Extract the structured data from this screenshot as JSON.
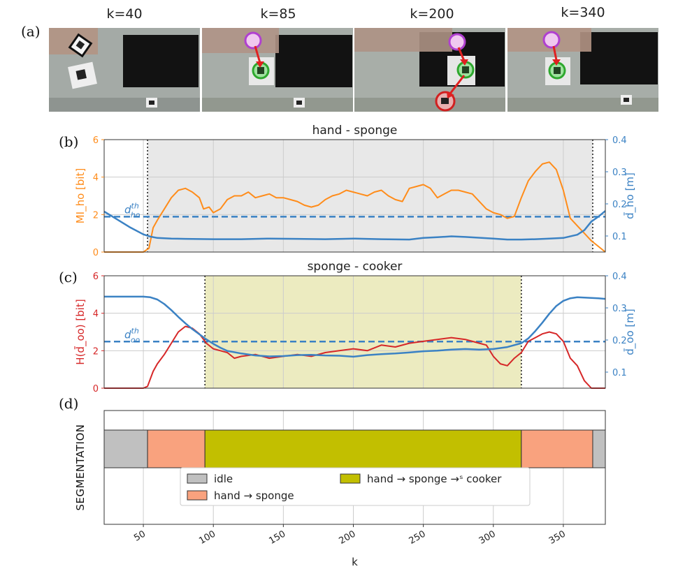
{
  "panel_letters": [
    "(a)",
    "(b)",
    "(c)",
    "(d)"
  ],
  "frames": [
    {
      "label": "k=40"
    },
    {
      "label": "k=85"
    },
    {
      "label": "k=200"
    },
    {
      "label": "k=340"
    }
  ],
  "colors": {
    "orange": "#ff8c1a",
    "blue": "#3b82c4",
    "red": "#d62728",
    "shade_b": "#e8e8e8",
    "shade_c": "#ecebc0",
    "idle": "#c0c0c0",
    "hand_sponge": "#f9a27e",
    "hand_sponge_cooker": "#c2bf00",
    "grid": "#cccccc"
  },
  "x_axis": {
    "label": "k",
    "ticks": [
      "50",
      "100",
      "150",
      "200",
      "250",
      "300",
      "350"
    ]
  },
  "chart_data": [
    {
      "type": "line",
      "panel": "(b)",
      "title": "hand - sponge",
      "ylabel": "MI_ho [bit]",
      "ylabel_right": "d̄_ho [m]",
      "xlim": [
        22,
        380
      ],
      "ylim": [
        0,
        6
      ],
      "ylim_right": [
        0.05,
        0.4
      ],
      "yticks": [
        "0",
        "2",
        "4",
        "6"
      ],
      "yticks_right": [
        "0.1",
        "0.2",
        "0.3",
        "0.4"
      ],
      "threshold_label": "d_ho^th",
      "threshold_right": 0.16,
      "shaded_region": [
        53,
        371
      ],
      "vlines": [
        53,
        371
      ],
      "series": [
        {
          "axis": "left",
          "color": "orange",
          "x": [
            22,
            50,
            54,
            57,
            60,
            65,
            70,
            75,
            80,
            85,
            90,
            93,
            97,
            100,
            105,
            110,
            115,
            120,
            125,
            130,
            135,
            140,
            145,
            150,
            155,
            160,
            165,
            170,
            175,
            180,
            185,
            190,
            195,
            200,
            205,
            210,
            215,
            220,
            225,
            230,
            235,
            240,
            245,
            250,
            255,
            260,
            265,
            270,
            275,
            280,
            285,
            290,
            295,
            300,
            305,
            310,
            315,
            320,
            325,
            330,
            335,
            340,
            345,
            350,
            355,
            360,
            365,
            370,
            375,
            380
          ],
          "y": [
            0,
            0,
            0.2,
            1.3,
            1.7,
            2.3,
            2.9,
            3.3,
            3.4,
            3.2,
            2.9,
            2.3,
            2.4,
            2.1,
            2.3,
            2.8,
            3.0,
            3.0,
            3.2,
            2.9,
            3.0,
            3.1,
            2.9,
            2.9,
            2.8,
            2.7,
            2.5,
            2.4,
            2.5,
            2.8,
            3.0,
            3.1,
            3.3,
            3.2,
            3.1,
            3.0,
            3.2,
            3.3,
            3.0,
            2.8,
            2.7,
            3.4,
            3.5,
            3.6,
            3.4,
            2.9,
            3.1,
            3.3,
            3.3,
            3.2,
            3.1,
            2.7,
            2.3,
            2.1,
            2.0,
            1.8,
            1.9,
            2.9,
            3.8,
            4.3,
            4.7,
            4.8,
            4.4,
            3.3,
            1.8,
            1.4,
            1.0,
            0.6,
            0.3,
            0
          ]
        },
        {
          "axis": "right",
          "color": "blue",
          "x": [
            22,
            30,
            40,
            50,
            55,
            60,
            70,
            80,
            100,
            120,
            140,
            160,
            180,
            200,
            220,
            240,
            250,
            260,
            270,
            280,
            300,
            310,
            320,
            330,
            340,
            350,
            360,
            365,
            370,
            375,
            380
          ],
          "y": [
            0.176,
            0.155,
            0.128,
            0.105,
            0.098,
            0.094,
            0.092,
            0.091,
            0.09,
            0.09,
            0.092,
            0.091,
            0.09,
            0.092,
            0.09,
            0.089,
            0.094,
            0.096,
            0.099,
            0.097,
            0.092,
            0.089,
            0.089,
            0.09,
            0.092,
            0.094,
            0.104,
            0.118,
            0.145,
            0.16,
            0.178
          ]
        }
      ]
    },
    {
      "type": "line",
      "panel": "(c)",
      "title": "sponge - cooker",
      "ylabel": "H(d̄_oo) [bit]",
      "ylabel_right": "d̄_oo [m]",
      "xlim": [
        22,
        380
      ],
      "ylim": [
        0,
        6
      ],
      "ylim_right": [
        0.05,
        0.4
      ],
      "yticks": [
        "0",
        "2",
        "4",
        "6"
      ],
      "yticks_right": [
        "0.1",
        "0.2",
        "0.3",
        "0.4"
      ],
      "threshold_label": "d_oo^th",
      "threshold_right": 0.195,
      "shaded_region": [
        94,
        320
      ],
      "vlines": [
        94,
        320
      ],
      "series": [
        {
          "axis": "left",
          "color": "red",
          "x": [
            22,
            50,
            53,
            57,
            60,
            65,
            70,
            75,
            80,
            85,
            90,
            95,
            100,
            105,
            110,
            115,
            120,
            130,
            140,
            150,
            160,
            170,
            180,
            190,
            200,
            210,
            220,
            230,
            240,
            250,
            260,
            270,
            280,
            285,
            290,
            295,
            300,
            305,
            310,
            315,
            320,
            325,
            330,
            335,
            340,
            345,
            350,
            355,
            360,
            365,
            370,
            375,
            380
          ],
          "y": [
            0,
            0,
            0.1,
            0.9,
            1.3,
            1.8,
            2.4,
            3.0,
            3.3,
            3.2,
            2.9,
            2.4,
            2.1,
            2.0,
            1.9,
            1.6,
            1.7,
            1.8,
            1.6,
            1.7,
            1.8,
            1.7,
            1.9,
            2.0,
            2.1,
            2.0,
            2.3,
            2.2,
            2.4,
            2.5,
            2.6,
            2.7,
            2.6,
            2.5,
            2.4,
            2.3,
            1.7,
            1.3,
            1.2,
            1.6,
            1.9,
            2.5,
            2.7,
            2.9,
            3.0,
            2.9,
            2.5,
            1.6,
            1.2,
            0.4,
            0,
            0,
            0
          ]
        },
        {
          "axis": "right",
          "color": "blue",
          "x": [
            22,
            40,
            50,
            55,
            60,
            65,
            70,
            75,
            80,
            85,
            90,
            95,
            100,
            105,
            110,
            120,
            130,
            140,
            150,
            160,
            170,
            180,
            190,
            200,
            210,
            220,
            230,
            240,
            250,
            260,
            270,
            280,
            290,
            300,
            310,
            320,
            325,
            330,
            335,
            340,
            345,
            350,
            355,
            360,
            365,
            370,
            375,
            380
          ],
          "y": [
            0.335,
            0.335,
            0.335,
            0.333,
            0.326,
            0.312,
            0.293,
            0.272,
            0.252,
            0.234,
            0.218,
            0.202,
            0.188,
            0.176,
            0.166,
            0.158,
            0.152,
            0.149,
            0.15,
            0.153,
            0.154,
            0.152,
            0.151,
            0.148,
            0.153,
            0.156,
            0.158,
            0.161,
            0.165,
            0.167,
            0.17,
            0.172,
            0.17,
            0.172,
            0.178,
            0.19,
            0.205,
            0.228,
            0.254,
            0.282,
            0.306,
            0.322,
            0.33,
            0.333,
            0.332,
            0.331,
            0.33,
            0.328
          ]
        }
      ]
    },
    {
      "type": "bar",
      "panel": "(d)",
      "ylabel": "SEGMENTATION",
      "xlim": [
        22,
        380
      ],
      "segments": [
        {
          "start": 22,
          "end": 53,
          "class": "idle"
        },
        {
          "start": 53,
          "end": 94,
          "class": "hand_sponge"
        },
        {
          "start": 94,
          "end": 320,
          "class": "hand_sponge_cooker"
        },
        {
          "start": 320,
          "end": 371,
          "class": "hand_sponge"
        },
        {
          "start": 371,
          "end": 380,
          "class": "idle"
        }
      ],
      "legend": [
        {
          "key": "idle",
          "label": "idle"
        },
        {
          "key": "hand_sponge",
          "label": "hand → sponge"
        },
        {
          "key": "hand_sponge_cooker",
          "label": "hand → sponge →ˢ cooker"
        }
      ]
    }
  ]
}
